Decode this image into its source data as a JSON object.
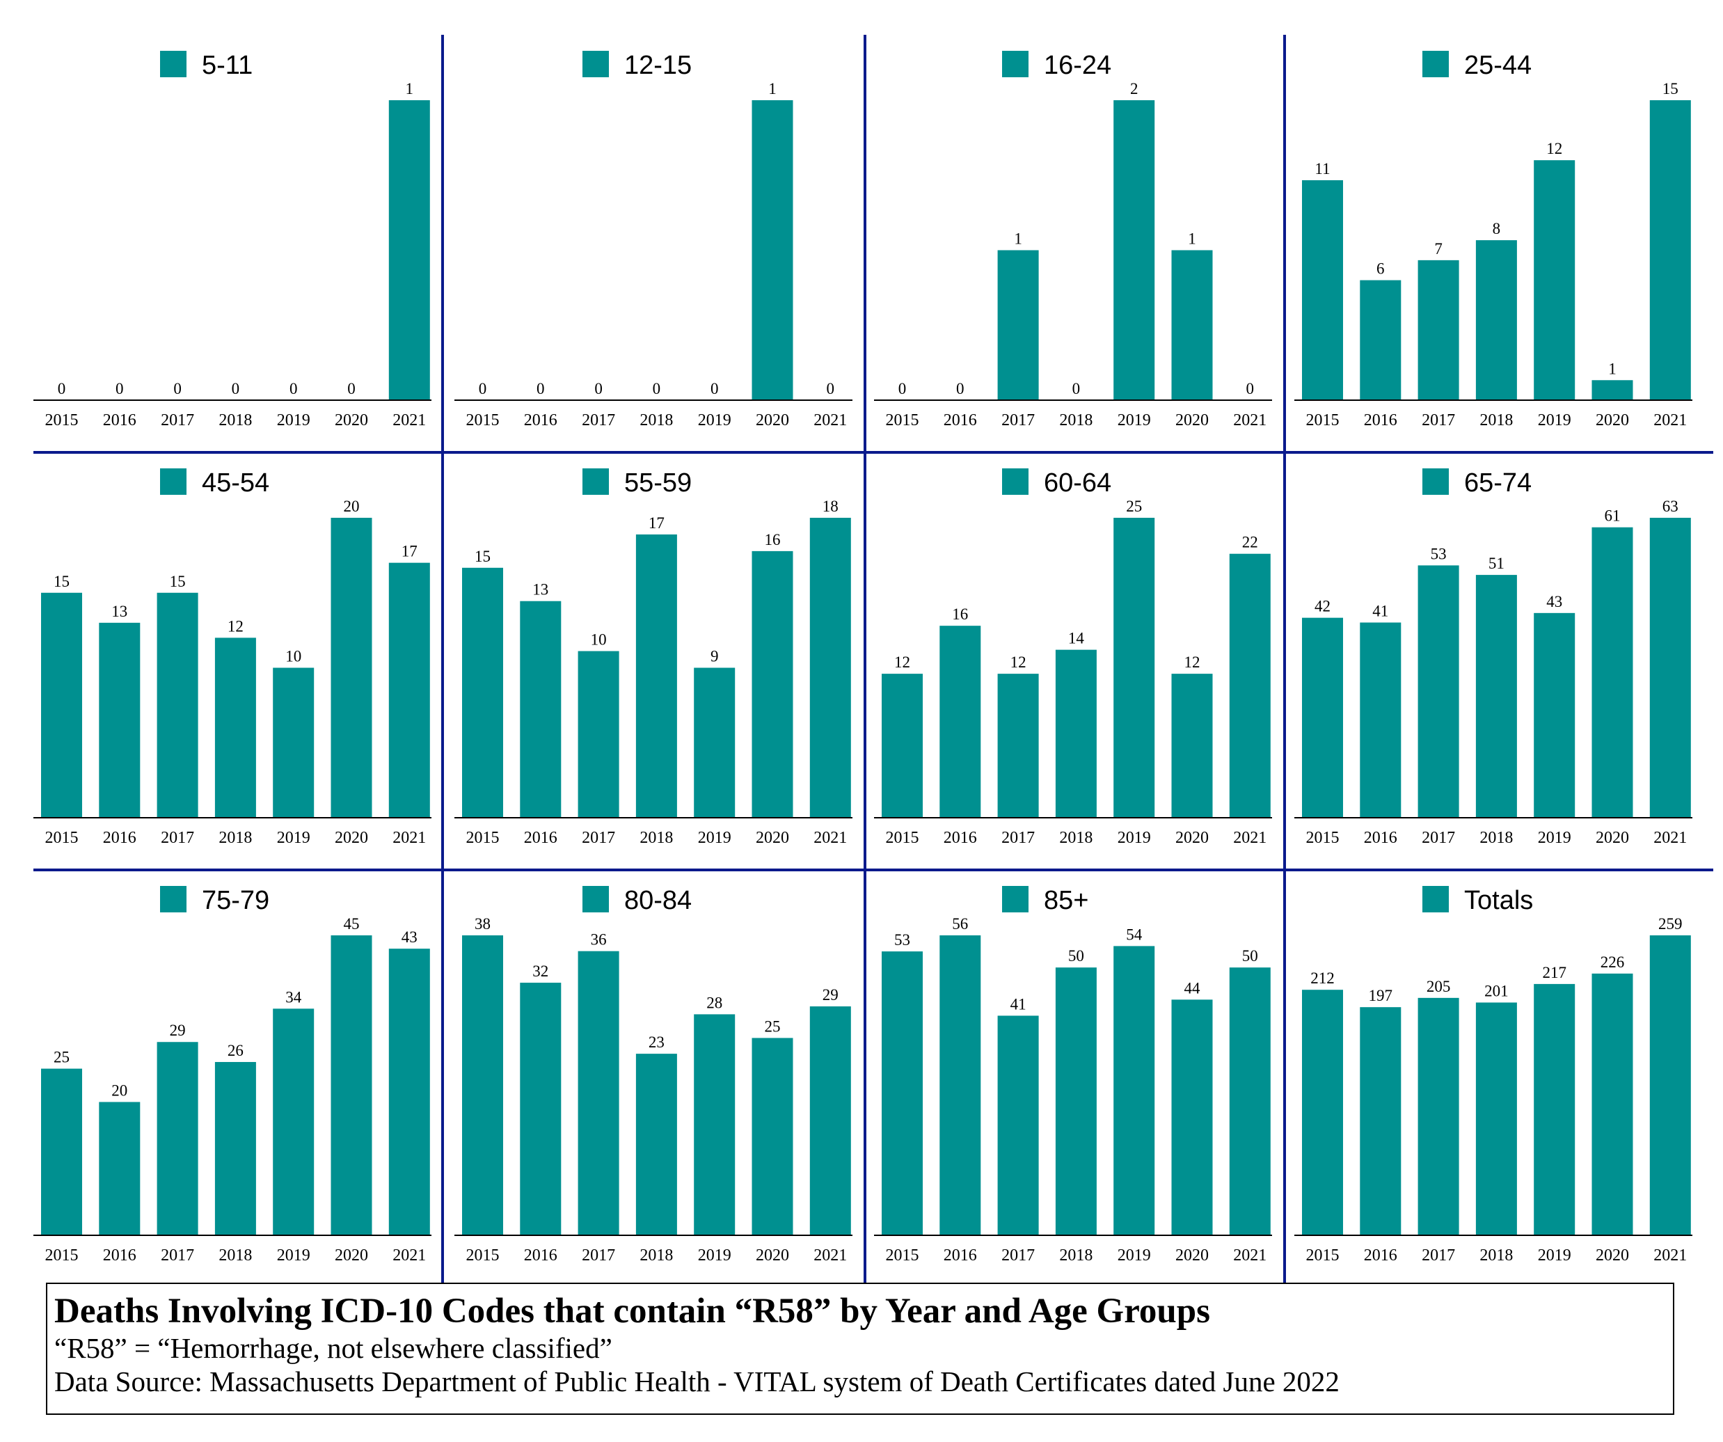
{
  "colors": {
    "bar": "#009090",
    "divider": "#0a1a8c",
    "axis": "#000000",
    "text": "#000000"
  },
  "caption": {
    "title": "Deaths Involving ICD-10 Codes that contain “R58” by Year and Age Groups",
    "definition": "“R58” = “Hemorrhage, not elsewhere classified”",
    "source": "Data Source:  Massachusetts Department of Public Health - VITAL system of Death Certificates dated June 2022"
  },
  "chart_data": [
    {
      "type": "bar",
      "title": "5-11",
      "legend": "5-11",
      "categories": [
        "2015",
        "2016",
        "2017",
        "2018",
        "2019",
        "2020",
        "2021"
      ],
      "values": [
        0,
        0,
        0,
        0,
        0,
        0,
        1
      ],
      "data_labels": [
        "0",
        "0",
        "0",
        "0",
        "0",
        "0",
        "1"
      ]
    },
    {
      "type": "bar",
      "title": "12-15",
      "legend": "12-15",
      "categories": [
        "2015",
        "2016",
        "2017",
        "2018",
        "2019",
        "2020",
        "2021"
      ],
      "values": [
        0,
        0,
        0,
        0,
        0,
        1,
        0
      ],
      "data_labels": [
        "0",
        "0",
        "0",
        "0",
        "0",
        "1",
        "0"
      ]
    },
    {
      "type": "bar",
      "title": "16-24",
      "legend": "16-24",
      "categories": [
        "2015",
        "2016",
        "2017",
        "2018",
        "2019",
        "2020",
        "2021"
      ],
      "values": [
        0,
        0,
        1,
        0,
        2,
        1,
        0
      ],
      "data_labels": [
        "0",
        "0",
        "1",
        "0",
        "2",
        "1",
        "0"
      ]
    },
    {
      "type": "bar",
      "title": "25-44",
      "legend": "25-44",
      "categories": [
        "2015",
        "2016",
        "2017",
        "2018",
        "2019",
        "2020",
        "2021"
      ],
      "values": [
        11,
        6,
        7,
        8,
        12,
        1,
        15
      ],
      "data_labels": [
        "11",
        "6",
        "7",
        "8",
        "12",
        "1",
        "15"
      ]
    },
    {
      "type": "bar",
      "title": "45-54",
      "legend": "45-54",
      "categories": [
        "2015",
        "2016",
        "2017",
        "2018",
        "2019",
        "2020",
        "2021"
      ],
      "values": [
        15,
        13,
        15,
        12,
        10,
        20,
        17
      ],
      "data_labels": [
        "15",
        "13",
        "15",
        "12",
        "10",
        "20",
        "17"
      ]
    },
    {
      "type": "bar",
      "title": "55-59",
      "legend": "55-59",
      "categories": [
        "2015",
        "2016",
        "2017",
        "2018",
        "2019",
        "2020",
        "2021"
      ],
      "values": [
        15,
        13,
        10,
        17,
        9,
        16,
        18
      ],
      "data_labels": [
        "15",
        "13",
        "10",
        "17",
        "9",
        "16",
        "18"
      ]
    },
    {
      "type": "bar",
      "title": "60-64",
      "legend": "60-64",
      "categories": [
        "2015",
        "2016",
        "2017",
        "2018",
        "2019",
        "2020",
        "2021"
      ],
      "values": [
        12,
        16,
        12,
        14,
        25,
        12,
        22
      ],
      "data_labels": [
        "12",
        "16",
        "12",
        "14",
        "25",
        "12",
        "22"
      ]
    },
    {
      "type": "bar",
      "title": "65-74",
      "legend": "65-74",
      "categories": [
        "2015",
        "2016",
        "2017",
        "2018",
        "2019",
        "2020",
        "2021"
      ],
      "values": [
        42,
        41,
        53,
        51,
        43,
        61,
        63
      ],
      "data_labels": [
        "42",
        "41",
        "53",
        "51",
        "43",
        "61",
        "63"
      ]
    },
    {
      "type": "bar",
      "title": "75-79",
      "legend": "75-79",
      "categories": [
        "2015",
        "2016",
        "2017",
        "2018",
        "2019",
        "2020",
        "2021"
      ],
      "values": [
        25,
        20,
        29,
        26,
        34,
        45,
        43
      ],
      "data_labels": [
        "25",
        "20",
        "29",
        "26",
        "34",
        "45",
        "43"
      ]
    },
    {
      "type": "bar",
      "title": "80-84",
      "legend": "80-84",
      "categories": [
        "2015",
        "2016",
        "2017",
        "2018",
        "2019",
        "2020",
        "2021"
      ],
      "values": [
        38,
        32,
        36,
        23,
        28,
        25,
        29
      ],
      "data_labels": [
        "38",
        "32",
        "36",
        "23",
        "28",
        "25",
        "29"
      ]
    },
    {
      "type": "bar",
      "title": "85+",
      "legend": "85+",
      "categories": [
        "2015",
        "2016",
        "2017",
        "2018",
        "2019",
        "2020",
        "2021"
      ],
      "values": [
        53,
        56,
        41,
        50,
        54,
        44,
        50
      ],
      "data_labels": [
        "53",
        "56",
        "41",
        "50",
        "54",
        "44",
        "50"
      ]
    },
    {
      "type": "bar",
      "title": "Totals",
      "legend": "Totals",
      "categories": [
        "2015",
        "2016",
        "2017",
        "2018",
        "2019",
        "2020",
        "2021"
      ],
      "values": [
        212,
        197,
        205,
        201,
        217,
        226,
        259
      ],
      "data_labels": [
        "212",
        "197",
        "205",
        "201",
        "217",
        "226",
        "259"
      ]
    }
  ]
}
